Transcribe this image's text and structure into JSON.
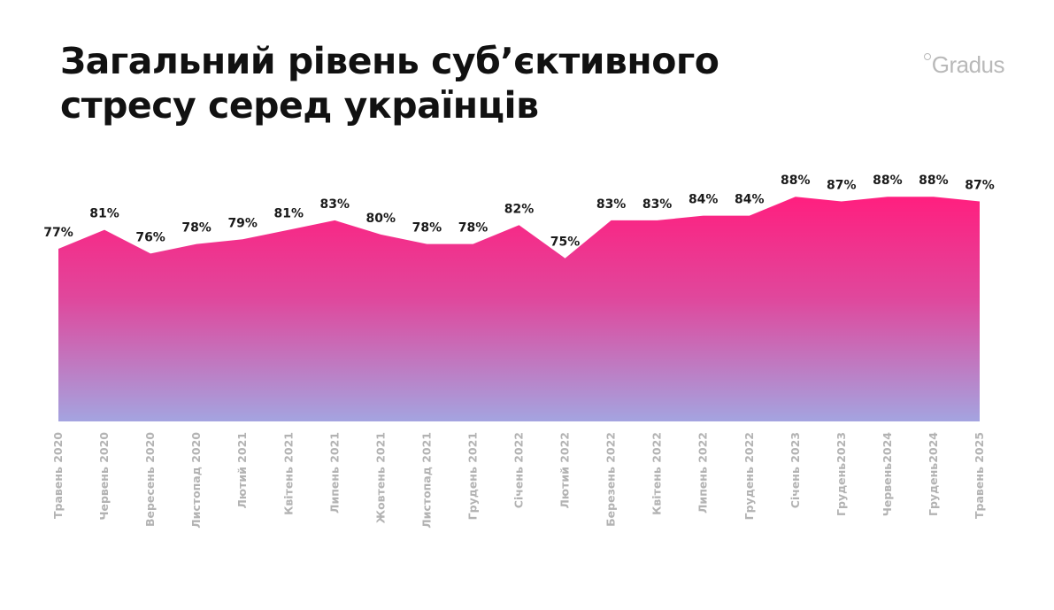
{
  "title": {
    "line1": "Загальний рівень суб’єктивного",
    "line2": "стресу серед українців"
  },
  "logo": "Gradus",
  "colors": {
    "fill_top": "#ff1f7f",
    "fill_bottom": "#a4a4e0",
    "value_text": "#1a1a1a",
    "tick_text": "#b3b3b3"
  },
  "chart_data": {
    "type": "area",
    "title": "Загальний рівень суб’єктивного стресу серед українців",
    "xlabel": "",
    "ylabel": "",
    "grid": false,
    "legend": "none",
    "categories": [
      "Травень 2020",
      "Червень 2020",
      "Вересень 2020",
      "Листопад 2020",
      "Лютий 2021",
      "Квітень 2021",
      "Липень 2021",
      "Жовтень 2021",
      "Листопад 2021",
      "Грудень 2021",
      "Січень 2022",
      "Лютий 2022",
      "Березень 2022",
      "Квітень 2022",
      "Липень 2022",
      "Грудень 2022",
      "Січень 2023",
      "Грудень2023",
      "Червень2024",
      "Грудень2024",
      "Травень 2025"
    ],
    "values": [
      77,
      81,
      76,
      78,
      79,
      81,
      83,
      80,
      78,
      78,
      82,
      75,
      83,
      83,
      84,
      84,
      88,
      87,
      88,
      88,
      87
    ],
    "value_labels": [
      "77%",
      "81%",
      "76%",
      "78%",
      "79%",
      "81%",
      "83%",
      "80%",
      "78%",
      "78%",
      "82%",
      "75%",
      "83%",
      "83%",
      "84%",
      "84%",
      "88%",
      "87%",
      "88%",
      "88%",
      "87%"
    ]
  }
}
